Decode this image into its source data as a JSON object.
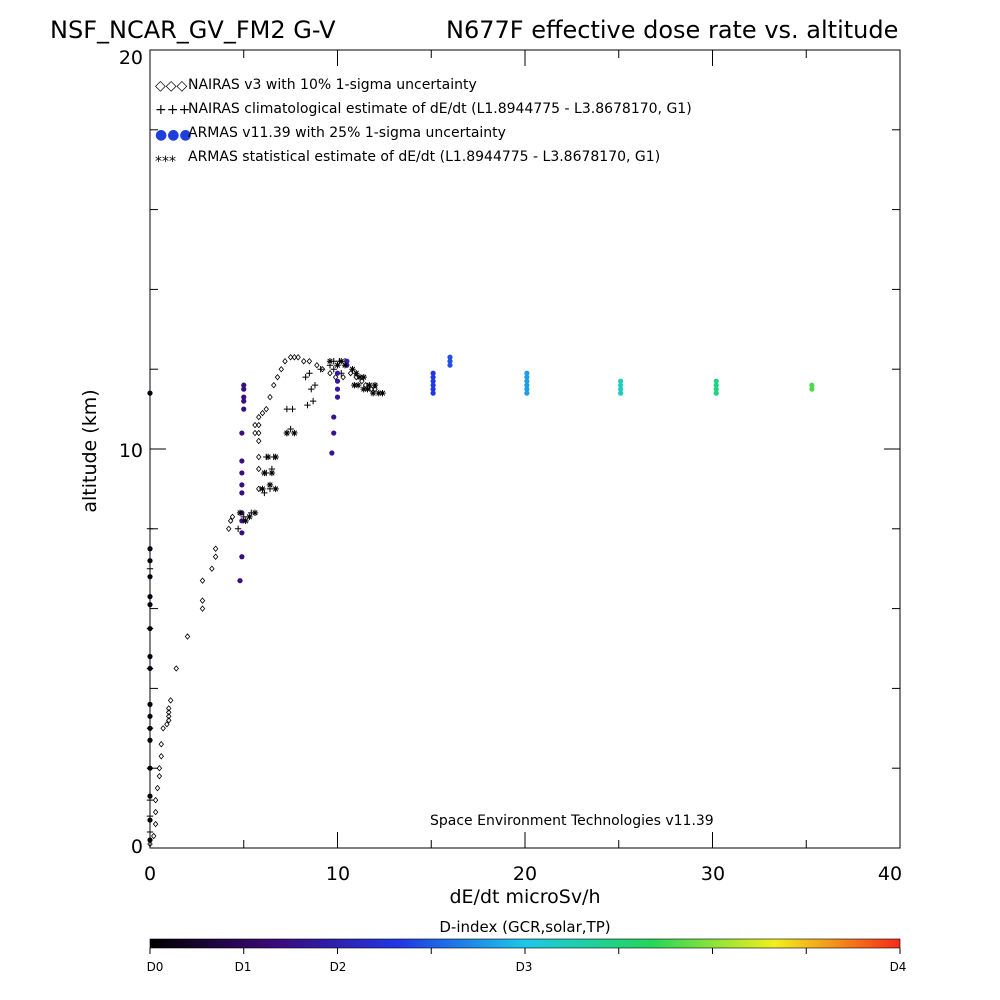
{
  "chart_data": {
    "type": "scatter",
    "title_left": "NSF_NCAR_GV_FM2 G-V",
    "title_right": "N677F  effective dose rate vs. altitude",
    "xlabel": "dE/dt microSv/h",
    "ylabel": "altitude (km)",
    "xlim": [
      0,
      40
    ],
    "ylim": [
      0,
      20
    ],
    "x_tick_labels": [
      "0",
      "10",
      "20",
      "30",
      "40"
    ],
    "y_tick_labels": [
      "0",
      "10",
      "20"
    ],
    "legend_placement": "top-left",
    "legend": [
      {
        "symbol": "◇◇◇",
        "label": "NAIRAS v3 with 10% 1-sigma uncertainty"
      },
      {
        "symbol": "+++",
        "label": "NAIRAS climatological estimate of dE/dt (L1.8944775 - L3.8678170, G1)"
      },
      {
        "symbol": "●●●",
        "label": "ARMAS v11.39 with 25% 1-sigma uncertainty",
        "color": "#1f3fdc"
      },
      {
        "symbol": "***",
        "label": "ARMAS statistical estimate of dE/dt (L1.8944775 - L3.8678170, G1)"
      }
    ],
    "annotation": "Space Environment Technologies v11.39",
    "colorbar": {
      "title": "D-index (GCR,solar,TP)",
      "labels": [
        "D0",
        "D1",
        "D2",
        "D3",
        "D4"
      ],
      "colors": [
        "#000000",
        "#3b0a7a",
        "#2038e6",
        "#1dc8e8",
        "#22d65a",
        "#f2ef1c",
        "#f52a1a"
      ]
    },
    "series": [
      {
        "name": "NAIRAS v3",
        "marker": "diamond",
        "points": [
          [
            0,
            0.1
          ],
          [
            0.2,
            0.3
          ],
          [
            0.3,
            0.6
          ],
          [
            0.3,
            0.9
          ],
          [
            0.3,
            1.2
          ],
          [
            0.4,
            1.5
          ],
          [
            0.5,
            1.8
          ],
          [
            0.5,
            2.0
          ],
          [
            0.6,
            2.3
          ],
          [
            0.6,
            2.6
          ],
          [
            0.7,
            3.0
          ],
          [
            0.9,
            3.1
          ],
          [
            1.0,
            3.2
          ],
          [
            1.0,
            3.3
          ],
          [
            1.0,
            3.4
          ],
          [
            1.0,
            3.5
          ],
          [
            1.1,
            3.7
          ],
          [
            1.4,
            4.5
          ],
          [
            2.0,
            5.3
          ],
          [
            2.8,
            6.0
          ],
          [
            2.8,
            6.2
          ],
          [
            2.8,
            6.7
          ],
          [
            3.3,
            7.0
          ],
          [
            3.5,
            7.3
          ],
          [
            3.5,
            7.5
          ],
          [
            4.2,
            8.0
          ],
          [
            4.3,
            8.2
          ],
          [
            4.4,
            8.3
          ],
          [
            5.8,
            9.0
          ],
          [
            5.8,
            9.5
          ],
          [
            5.8,
            9.8
          ],
          [
            5.8,
            10.2
          ],
          [
            5.8,
            10.4
          ],
          [
            5.8,
            10.6
          ],
          [
            5.8,
            10.8
          ],
          [
            6.0,
            10.9
          ],
          [
            5.6,
            10.4
          ],
          [
            5.6,
            10.6
          ],
          [
            6.2,
            11.0
          ],
          [
            6.4,
            11.3
          ],
          [
            6.6,
            11.6
          ],
          [
            6.8,
            11.8
          ],
          [
            7.0,
            12.0
          ],
          [
            7.2,
            12.2
          ],
          [
            7.5,
            12.3
          ],
          [
            7.7,
            12.3
          ],
          [
            7.9,
            12.3
          ],
          [
            8.2,
            12.2
          ],
          [
            8.5,
            12.2
          ],
          [
            8.9,
            12.1
          ],
          [
            9.2,
            12.0
          ],
          [
            9.6,
            11.9
          ],
          [
            9.9,
            11.8
          ],
          [
            10.3,
            11.8
          ],
          [
            10.7,
            11.9
          ],
          [
            11.0,
            11.8
          ],
          [
            11.3,
            11.7
          ],
          [
            11.5,
            11.6
          ],
          [
            11.8,
            11.5
          ],
          [
            12.0,
            11.5
          ]
        ]
      },
      {
        "name": "NAIRAS climatological estimate",
        "marker": "plus",
        "points": [
          [
            0,
            0.4
          ],
          [
            0,
            0.8
          ],
          [
            0,
            1.2
          ],
          [
            0,
            2.0
          ],
          [
            0,
            3.0
          ],
          [
            0,
            4.5
          ],
          [
            0,
            5.5
          ],
          [
            0,
            7.0
          ],
          [
            0,
            8.0
          ],
          [
            4.7,
            8.0
          ],
          [
            5.0,
            8.3
          ],
          [
            5.4,
            8.4
          ],
          [
            6.1,
            8.9
          ],
          [
            6.4,
            9.0
          ],
          [
            6.2,
            9.4
          ],
          [
            6.5,
            9.5
          ],
          [
            6.2,
            9.8
          ],
          [
            6.6,
            9.8
          ],
          [
            7.3,
            10.4
          ],
          [
            7.5,
            10.5
          ],
          [
            7.3,
            11.0
          ],
          [
            7.6,
            11.0
          ],
          [
            8.4,
            11.1
          ],
          [
            8.7,
            11.2
          ],
          [
            8.6,
            11.5
          ],
          [
            8.8,
            11.6
          ],
          [
            8.3,
            11.8
          ],
          [
            8.5,
            11.9
          ],
          [
            9.1,
            12.0
          ],
          [
            9.6,
            12.1
          ],
          [
            9.8,
            12.2
          ],
          [
            10.1,
            12.2
          ],
          [
            10.4,
            12.2
          ],
          [
            9.8,
            12.0
          ],
          [
            10.2,
            11.9
          ]
        ]
      },
      {
        "name": "ARMAS v11.39",
        "marker": "circle",
        "colored": true,
        "points": [
          [
            0,
            0.2,
            0.02
          ],
          [
            0,
            0.7,
            0.02
          ],
          [
            0,
            1.3,
            0.02
          ],
          [
            0,
            2.0,
            0.02
          ],
          [
            0,
            2.7,
            0.02
          ],
          [
            0,
            3.0,
            0.02
          ],
          [
            0,
            3.3,
            0.02
          ],
          [
            0,
            3.6,
            0.02
          ],
          [
            0,
            4.5,
            0.02
          ],
          [
            0,
            4.8,
            0.02
          ],
          [
            0,
            5.5,
            0.02
          ],
          [
            0,
            6.1,
            0.02
          ],
          [
            0,
            6.3,
            0.02
          ],
          [
            0,
            6.8,
            0.02
          ],
          [
            0,
            7.2,
            0.02
          ],
          [
            0,
            7.5,
            0.02
          ],
          [
            0,
            11.4,
            0.02
          ],
          [
            4.8,
            6.7,
            0.18
          ],
          [
            4.9,
            7.3,
            0.18
          ],
          [
            4.9,
            7.9,
            0.18
          ],
          [
            4.9,
            8.2,
            0.18
          ],
          [
            4.9,
            8.4,
            0.18
          ],
          [
            4.9,
            8.9,
            0.18
          ],
          [
            4.9,
            9.1,
            0.18
          ],
          [
            4.9,
            9.4,
            0.18
          ],
          [
            4.9,
            9.7,
            0.18
          ],
          [
            4.9,
            10.4,
            0.18
          ],
          [
            5.0,
            11.0,
            0.18
          ],
          [
            5.0,
            11.2,
            0.18
          ],
          [
            5.0,
            11.3,
            0.18
          ],
          [
            5.0,
            11.5,
            0.18
          ],
          [
            5.0,
            11.6,
            0.18
          ],
          [
            9.7,
            9.9,
            0.2
          ],
          [
            9.8,
            10.4,
            0.2
          ],
          [
            9.8,
            10.8,
            0.2
          ],
          [
            10.0,
            11.3,
            0.22
          ],
          [
            10.0,
            11.5,
            0.22
          ],
          [
            10.0,
            11.7,
            0.22
          ],
          [
            10.0,
            11.9,
            0.22
          ],
          [
            10.5,
            12.1,
            0.24
          ],
          [
            10.5,
            12.2,
            0.24
          ],
          [
            15.1,
            11.4,
            0.33
          ],
          [
            15.1,
            11.5,
            0.33
          ],
          [
            15.1,
            11.6,
            0.33
          ],
          [
            15.1,
            11.7,
            0.33
          ],
          [
            15.1,
            11.8,
            0.33
          ],
          [
            15.1,
            11.9,
            0.33
          ],
          [
            16.0,
            12.1,
            0.36
          ],
          [
            16.0,
            12.2,
            0.36
          ],
          [
            16.0,
            12.3,
            0.36
          ],
          [
            20.1,
            11.4,
            0.45
          ],
          [
            20.1,
            11.5,
            0.45
          ],
          [
            20.1,
            11.6,
            0.45
          ],
          [
            20.1,
            11.7,
            0.45
          ],
          [
            20.1,
            11.8,
            0.45
          ],
          [
            20.1,
            11.9,
            0.45
          ],
          [
            25.1,
            11.4,
            0.55
          ],
          [
            25.1,
            11.5,
            0.55
          ],
          [
            25.1,
            11.6,
            0.55
          ],
          [
            25.1,
            11.7,
            0.55
          ],
          [
            30.2,
            11.4,
            0.62
          ],
          [
            30.2,
            11.5,
            0.62
          ],
          [
            30.2,
            11.6,
            0.62
          ],
          [
            30.2,
            11.7,
            0.62
          ],
          [
            35.3,
            11.5,
            0.7
          ],
          [
            35.3,
            11.6,
            0.7
          ]
        ]
      },
      {
        "name": "ARMAS statistical estimate",
        "marker": "asterisk",
        "points": [
          [
            4.8,
            8.4
          ],
          [
            5.1,
            8.2
          ],
          [
            5.3,
            8.3
          ],
          [
            5.6,
            8.4
          ],
          [
            6.0,
            9.0
          ],
          [
            6.4,
            9.1
          ],
          [
            6.7,
            9.0
          ],
          [
            6.1,
            9.4
          ],
          [
            6.5,
            9.4
          ],
          [
            6.3,
            9.8
          ],
          [
            6.7,
            9.8
          ],
          [
            7.3,
            10.4
          ],
          [
            7.7,
            10.4
          ],
          [
            10.2,
            12.2
          ],
          [
            10.4,
            12.1
          ],
          [
            10.8,
            12.0
          ],
          [
            11.0,
            11.9
          ],
          [
            11.2,
            11.8
          ],
          [
            11.4,
            11.8
          ],
          [
            11.1,
            11.6
          ],
          [
            11.4,
            11.5
          ],
          [
            11.7,
            11.6
          ],
          [
            11.9,
            11.4
          ],
          [
            12.2,
            11.4
          ],
          [
            12.4,
            11.4
          ],
          [
            10.9,
            11.6
          ],
          [
            11.6,
            11.5
          ],
          [
            12.0,
            11.6
          ],
          [
            9.6,
            12.2
          ],
          [
            10.0,
            12.1
          ]
        ]
      }
    ]
  }
}
